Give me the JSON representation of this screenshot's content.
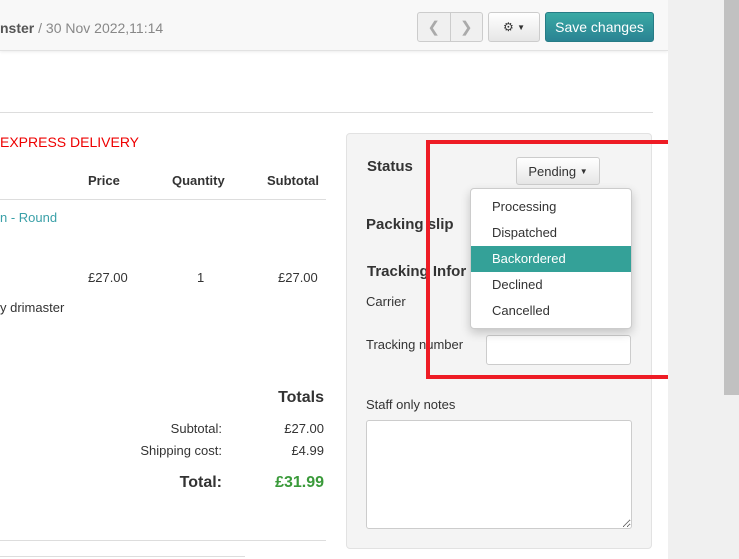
{
  "header": {
    "title_name": "nster",
    "title_date": "/ 30 Nov 2022,11:14",
    "prev_icon": "chevron-left",
    "next_icon": "chevron-right",
    "gear_icon": "gear",
    "save_label": "Save changes"
  },
  "order": {
    "delivery": "EXPRESS DELIVERY",
    "columns": [
      "Price",
      "Quantity",
      "Subtotal"
    ],
    "item": {
      "name": "n - Round",
      "price": "£27.00",
      "quantity": "1",
      "subtotal": "£27.00",
      "note": "y drimaster"
    }
  },
  "totals": {
    "heading": "Totals",
    "subtotal_label": "Subtotal:",
    "subtotal": "£27.00",
    "shipping_label": "Shipping cost:",
    "shipping": "£4.99",
    "total_label": "Total:",
    "total": "£31.99"
  },
  "panel": {
    "status_label": "Status",
    "status_value": "Pending",
    "packing_label": "Packing slip",
    "tracking_heading": "Tracking Infor",
    "carrier_label": "Carrier",
    "tracking_number_label": "Tracking number",
    "tracking_number_value": "",
    "notes_label": "Staff only notes",
    "notes_value": ""
  },
  "status_menu": {
    "options": [
      "Processing",
      "Dispatched",
      "Backordered",
      "Declined",
      "Cancelled"
    ],
    "highlighted": "Backordered"
  },
  "colors": {
    "accent": "#34a198",
    "highlight_box": "#ee1c25",
    "total": "#3a9a3a",
    "delivery": "#ee0000"
  }
}
